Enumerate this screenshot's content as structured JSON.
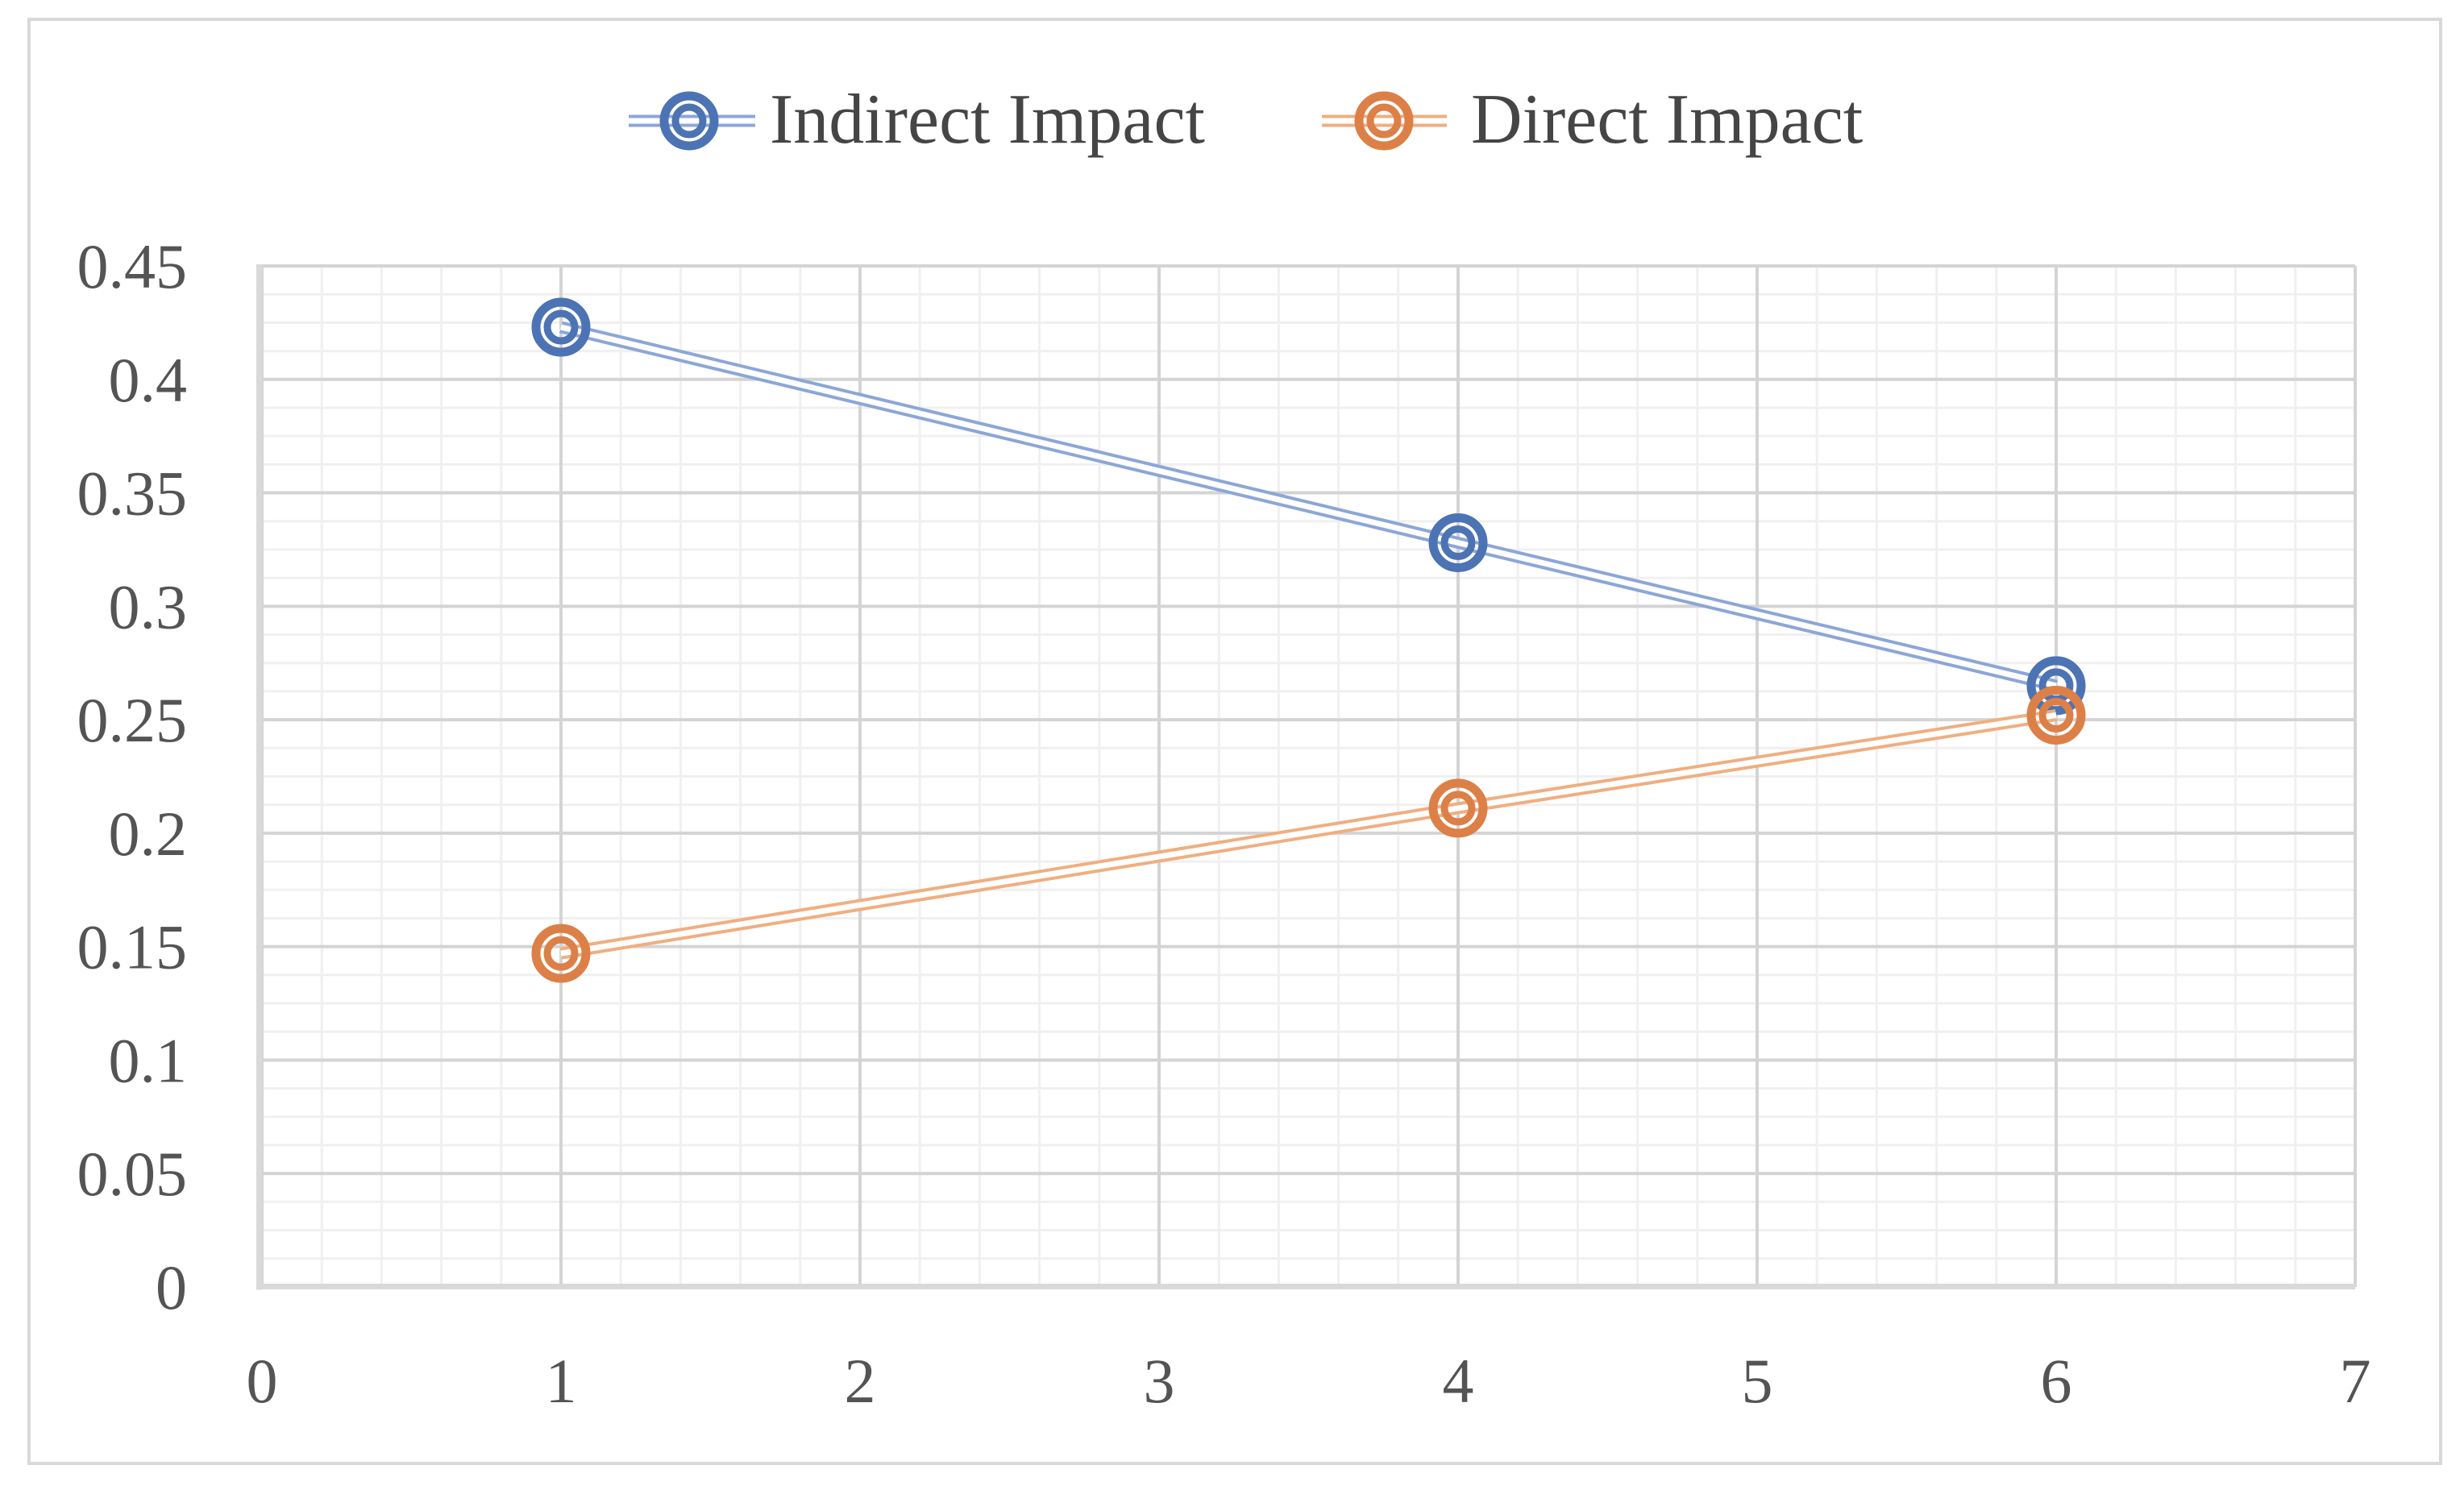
{
  "figure": {
    "background": "#FFFFFF",
    "border_color": "#D9D9D9",
    "text_color": "#545454"
  },
  "chart_data": {
    "type": "line",
    "title": "",
    "xlabel": "",
    "ylabel": "",
    "xlim": [
      0,
      7
    ],
    "ylim": [
      0,
      0.45
    ],
    "x_ticks": [
      "0",
      "1",
      "2",
      "3",
      "4",
      "5",
      "6",
      "7"
    ],
    "y_ticks": [
      "0",
      "0.05",
      "0.1",
      "0.15",
      "0.2",
      "0.25",
      "0.3",
      "0.35",
      "0.4",
      "0.45"
    ],
    "x_major_step": 1,
    "x_minor_step": 0.2,
    "y_major_step": 0.05,
    "y_minor_step": 0.0125,
    "grid": {
      "major": true,
      "minor": true,
      "major_color": "#D4D4D4",
      "minor_color": "#F0F0F0",
      "axis_color": "#D9D9D9"
    },
    "legend_position": "top-center",
    "marker_style": "double-ring",
    "line_style": "double-line",
    "series": [
      {
        "name": "Indirect Impact",
        "x": [
          1,
          4,
          6
        ],
        "values": [
          0.423,
          0.328,
          0.265
        ],
        "marker_color": "#4C73B4",
        "line_color": "#8CA6D8"
      },
      {
        "name": "Direct Impact",
        "x": [
          1,
          4,
          6
        ],
        "values": [
          0.147,
          0.211,
          0.252
        ],
        "marker_color": "#DC8048",
        "line_color": "#F0AE80"
      }
    ]
  }
}
